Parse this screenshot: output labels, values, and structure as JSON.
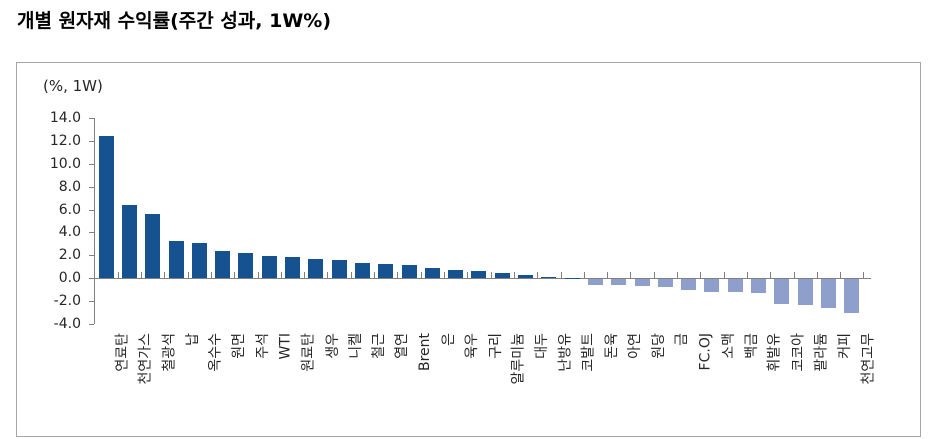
{
  "title": "개별 원자재 수익률(주간 성과, 1W%)",
  "chart_data": {
    "type": "bar",
    "title": "개별 원자재 수익률(주간 성과, 1W%)",
    "unit_label": "(%, 1W)",
    "xlabel": "",
    "ylabel": "(%, 1W)",
    "categories": [
      "연료탄",
      "천연가스",
      "철광석",
      "납",
      "옥수수",
      "원면",
      "주석",
      "WTI",
      "원료탄",
      "생우",
      "니켈",
      "철근",
      "열연",
      "Brent",
      "은",
      "육우",
      "구리",
      "알루미늄",
      "대두",
      "난방유",
      "코발트",
      "돈육",
      "아연",
      "원당",
      "금",
      "FC.OJ",
      "소맥",
      "백금",
      "휘발유",
      "코코아",
      "팔라듐",
      "커피",
      "천연고무"
    ],
    "values": [
      12.4,
      6.4,
      5.6,
      3.2,
      3.1,
      2.4,
      2.2,
      1.9,
      1.8,
      1.7,
      1.6,
      1.3,
      1.2,
      1.1,
      0.9,
      0.7,
      0.6,
      0.4,
      0.3,
      0.1,
      0.0,
      -0.5,
      -0.5,
      -0.6,
      -0.7,
      -1.0,
      -1.1,
      -1.1,
      -1.2,
      -2.2,
      -2.3,
      -2.5,
      -3.0
    ],
    "ylim": [
      -4.0,
      14.0
    ],
    "ytick_labels": [
      "14.0",
      "12.0",
      "10.0",
      "8.0",
      "6.0",
      "4.0",
      "2.0",
      "0.0",
      "-2.0",
      "-4.0"
    ],
    "sort_order": "descending",
    "grid": "off",
    "legend": "none",
    "positive_color": "#175290",
    "negative_color": "#8f9fcc",
    "axis_color": "#808080",
    "label_rotation_degrees": 90
  }
}
